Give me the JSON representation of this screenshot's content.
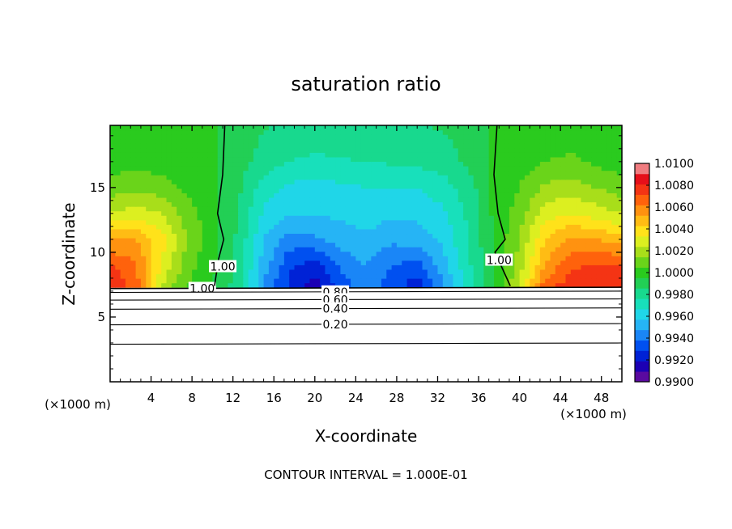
{
  "chart_data": {
    "type": "heatmap",
    "title": "saturation ratio",
    "xlabel": "X-coordinate",
    "ylabel": "Z-coordinate",
    "x_unit": "(×1000 m)",
    "x_unit_right": "(×1000 m)",
    "footer": "CONTOUR INTERVAL = 1.000E-01",
    "xlim": [
      0,
      50
    ],
    "ylim": [
      0,
      19.8
    ],
    "x_ticks": [
      4,
      8,
      12,
      16,
      20,
      24,
      28,
      32,
      36,
      40,
      44,
      48
    ],
    "y_ticks": [
      5,
      10,
      15
    ],
    "colorbar": {
      "min": 0.99,
      "max": 1.01,
      "step": 0.001,
      "ticks": [
        "1.0100",
        "1.0080",
        "1.0060",
        "1.0040",
        "1.0020",
        "1.0000",
        "0.9980",
        "0.9960",
        "0.9940",
        "0.9920",
        "0.9900"
      ],
      "colors": [
        "#5a0aa0",
        "#1c00b4",
        "#0022d6",
        "#0050f0",
        "#1a86f7",
        "#26b4f5",
        "#20d6e8",
        "#18e0bb",
        "#18d98e",
        "#22cf55",
        "#2acb1e",
        "#6ad41a",
        "#a8de1a",
        "#dcef20",
        "#ffe21a",
        "#ffbc14",
        "#ff9210",
        "#ff620c",
        "#f43414",
        "#e60f1a",
        "#f07c80"
      ]
    },
    "field": {
      "surface_z": 7.3,
      "x": [
        0,
        2.5,
        5,
        7.5,
        10,
        12.5,
        15,
        17.5,
        20,
        22.5,
        25,
        27.5,
        30,
        32.5,
        35,
        37.5,
        40,
        42.5,
        45,
        47.5,
        50
      ],
      "z": [
        7.5,
        9,
        11,
        13,
        15,
        17,
        19.8
      ],
      "values": [
        [
          1.009,
          1.0075,
          1.003,
          1.001,
          1.0001,
          0.9985,
          0.995,
          0.9928,
          0.9915,
          0.9935,
          0.9945,
          0.9935,
          0.9925,
          0.995,
          0.9975,
          1.0,
          1.003,
          1.0075,
          1.0085,
          1.009,
          1.009
        ],
        [
          1.008,
          1.0072,
          1.004,
          1.0015,
          1.0002,
          0.9986,
          0.9955,
          0.9932,
          0.9925,
          0.9942,
          0.995,
          0.994,
          0.9935,
          0.9955,
          0.9978,
          1.0,
          1.0025,
          1.006,
          1.0078,
          1.0082,
          1.008
        ],
        [
          1.006,
          1.006,
          1.0045,
          1.002,
          1.0003,
          0.9988,
          0.996,
          0.9945,
          0.9948,
          0.9955,
          0.9958,
          0.9952,
          0.9955,
          0.9962,
          0.998,
          1.0001,
          1.002,
          1.005,
          1.0062,
          1.006,
          1.0055
        ],
        [
          1.003,
          1.0035,
          1.003,
          1.0015,
          1.0004,
          0.999,
          0.9968,
          0.996,
          0.996,
          0.9962,
          0.9965,
          0.9962,
          0.9962,
          0.9968,
          0.9982,
          1.0002,
          1.0015,
          1.0035,
          1.004,
          1.0035,
          1.003
        ],
        [
          1.0015,
          1.0018,
          1.0015,
          1.0008,
          1.0003,
          0.9992,
          0.9975,
          0.9968,
          0.9965,
          0.9968,
          0.997,
          0.997,
          0.997,
          0.9975,
          0.9985,
          1.0002,
          1.001,
          1.0022,
          1.0025,
          1.002,
          1.0015
        ],
        [
          1.0005,
          1.0006,
          1.0005,
          1.0003,
          1.0001,
          0.9995,
          0.9985,
          0.998,
          0.9978,
          0.9979,
          0.998,
          0.9981,
          0.9982,
          0.9985,
          0.9992,
          1.0001,
          1.0006,
          1.001,
          1.0012,
          1.0008,
          1.0005
        ],
        [
          1.0003,
          1.0003,
          1.0002,
          1.0002,
          1.0001,
          0.9997,
          0.9991,
          0.9988,
          0.9987,
          0.9987,
          0.9988,
          0.9988,
          0.9989,
          0.9991,
          0.9995,
          1.0001,
          1.0003,
          1.0004,
          1.0004,
          1.0003,
          1.0003
        ]
      ]
    },
    "contours": [
      {
        "label": "1.00",
        "level": 1.0,
        "x": [
          0,
          50
        ],
        "z": [
          7.2,
          7.3
        ]
      },
      {
        "label": "0.80",
        "level": 0.8,
        "x": [
          0,
          50
        ],
        "z": [
          6.9,
          7.0
        ]
      },
      {
        "label": "0.60",
        "level": 0.6,
        "x": [
          0,
          50
        ],
        "z": [
          6.3,
          6.4
        ]
      },
      {
        "label": "0.40",
        "level": 0.4,
        "x": [
          0,
          50
        ],
        "z": [
          5.6,
          5.7
        ]
      },
      {
        "label": "0.20",
        "level": 0.2,
        "x": [
          0,
          50
        ],
        "z": [
          4.4,
          4.5
        ]
      },
      {
        "label": "",
        "level": 0.0,
        "x": [
          0,
          50
        ],
        "z": [
          2.9,
          3.0
        ]
      },
      {
        "label": "1.00",
        "level": 1.0,
        "x": [
          11.2,
          11.0,
          10.5,
          11.1,
          10.6,
          10.2
        ],
        "z": [
          19.8,
          16,
          13,
          11,
          9.5,
          7.4
        ]
      },
      {
        "label": "1.00",
        "level": 1.0,
        "x": [
          37.8,
          37.5,
          37.9,
          38.6,
          37.6,
          39.1
        ],
        "z": [
          19.8,
          16,
          13,
          11,
          10,
          7.4
        ]
      }
    ]
  }
}
